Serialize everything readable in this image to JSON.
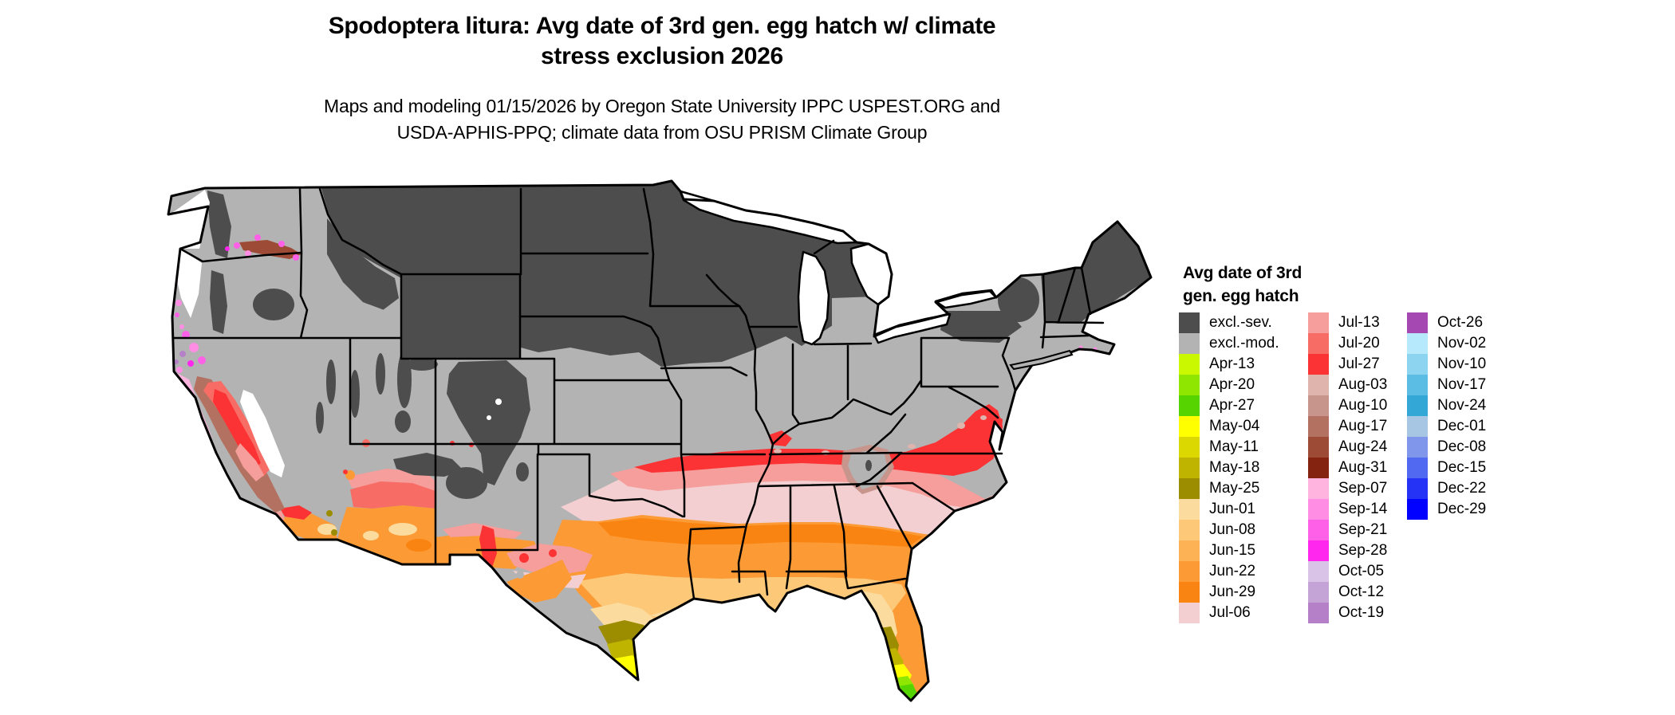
{
  "title": {
    "line1": "Spodoptera litura: Avg date of 3rd gen. egg hatch w/ climate",
    "line2": "stress exclusion 2026"
  },
  "subtitle": {
    "line1": "Maps and modeling 01/15/2026 by Oregon State University IPPC USPEST.ORG and",
    "line2": "USDA-APHIS-PPQ; climate data from OSU PRISM Climate Group"
  },
  "legend": {
    "title_line1": "Avg date of 3rd",
    "title_line2": "gen. egg hatch",
    "columns": [
      [
        {
          "label": "excl.-sev.",
          "color": "#4d4d4d"
        },
        {
          "label": "excl.-mod.",
          "color": "#b3b3b3"
        },
        {
          "label": "Apr-13",
          "color": "#c9f800"
        },
        {
          "label": "Apr-20",
          "color": "#8fe600"
        },
        {
          "label": "Apr-27",
          "color": "#55d400"
        },
        {
          "label": "May-04",
          "color": "#ffff00"
        },
        {
          "label": "May-11",
          "color": "#dbd700"
        },
        {
          "label": "May-18",
          "color": "#bfb400"
        },
        {
          "label": "May-25",
          "color": "#9c8d00"
        },
        {
          "label": "Jun-01",
          "color": "#fcdc9e"
        },
        {
          "label": "Jun-08",
          "color": "#fdc878"
        },
        {
          "label": "Jun-15",
          "color": "#fdb255"
        },
        {
          "label": "Jun-22",
          "color": "#fc9a35"
        },
        {
          "label": "Jun-29",
          "color": "#fa8411"
        },
        {
          "label": "Jul-06",
          "color": "#f3cfd1"
        }
      ],
      [
        {
          "label": "Jul-13",
          "color": "#f59e9b"
        },
        {
          "label": "Jul-20",
          "color": "#f76d65"
        },
        {
          "label": "Jul-27",
          "color": "#fb3335"
        },
        {
          "label": "Aug-03",
          "color": "#deb4ac"
        },
        {
          "label": "Aug-10",
          "color": "#c7958c"
        },
        {
          "label": "Aug-17",
          "color": "#b37261"
        },
        {
          "label": "Aug-24",
          "color": "#9d4b36"
        },
        {
          "label": "Aug-31",
          "color": "#842310"
        },
        {
          "label": "Sep-07",
          "color": "#feb4de"
        },
        {
          "label": "Sep-14",
          "color": "#fe8de3"
        },
        {
          "label": "Sep-21",
          "color": "#fe60e8"
        },
        {
          "label": "Sep-28",
          "color": "#ff27ee"
        },
        {
          "label": "Oct-05",
          "color": "#d9c3e6"
        },
        {
          "label": "Oct-12",
          "color": "#c4a4d7"
        },
        {
          "label": "Oct-19",
          "color": "#b680c9"
        }
      ],
      [
        {
          "label": "Oct-26",
          "color": "#a648b1"
        },
        {
          "label": "Nov-02",
          "color": "#b6e9fb"
        },
        {
          "label": "Nov-10",
          "color": "#8cd4f0"
        },
        {
          "label": "Nov-17",
          "color": "#5bbde3"
        },
        {
          "label": "Nov-24",
          "color": "#33a7d6"
        },
        {
          "label": "Dec-01",
          "color": "#a7c6e3"
        },
        {
          "label": "Dec-08",
          "color": "#7f96ea"
        },
        {
          "label": "Dec-15",
          "color": "#5168f1"
        },
        {
          "label": "Dec-22",
          "color": "#2533f6"
        },
        {
          "label": "Dec-29",
          "color": "#0101ff"
        }
      ]
    ]
  },
  "map_colors": {
    "background": "#ffffff",
    "excluded_severe": "#4d4d4d",
    "excluded_moderate": "#b3b3b3",
    "state_border": "#000000",
    "water": "#ffffff"
  }
}
